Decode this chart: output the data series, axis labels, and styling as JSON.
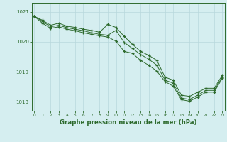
{
  "hours": [
    0,
    1,
    2,
    3,
    4,
    5,
    6,
    7,
    8,
    9,
    10,
    11,
    12,
    13,
    14,
    15,
    16,
    17,
    18,
    19,
    20,
    21,
    22,
    23
  ],
  "line1": [
    1020.85,
    1020.72,
    1020.55,
    1020.62,
    1020.52,
    1020.48,
    1020.42,
    1020.38,
    1020.32,
    1020.58,
    1020.48,
    1020.18,
    1019.92,
    1019.68,
    1019.55,
    1019.38,
    1018.82,
    1018.72,
    1018.22,
    1018.18,
    1018.32,
    1018.45,
    1018.45,
    1018.88
  ],
  "line2": [
    1020.85,
    1020.68,
    1020.5,
    1020.55,
    1020.47,
    1020.42,
    1020.37,
    1020.3,
    1020.25,
    1020.22,
    1020.38,
    1019.98,
    1019.78,
    1019.58,
    1019.42,
    1019.22,
    1018.72,
    1018.62,
    1018.12,
    1018.08,
    1018.22,
    1018.38,
    1018.38,
    1018.82
  ],
  "line3": [
    1020.85,
    1020.62,
    1020.45,
    1020.5,
    1020.42,
    1020.37,
    1020.3,
    1020.25,
    1020.2,
    1020.16,
    1020.02,
    1019.68,
    1019.62,
    1019.38,
    1019.22,
    1019.02,
    1018.67,
    1018.52,
    1018.07,
    1018.02,
    1018.16,
    1018.32,
    1018.32,
    1018.78
  ],
  "line_color": "#2d6a2d",
  "bg_color": "#d5eef0",
  "grid_color": "#b8d8dc",
  "axis_color": "#2d6a2d",
  "xlabel": "Graphe pression niveau de la mer (hPa)",
  "ylim": [
    1017.7,
    1021.3
  ],
  "yticks": [
    1018,
    1019,
    1020,
    1021
  ],
  "xticks": [
    0,
    1,
    2,
    3,
    4,
    5,
    6,
    7,
    8,
    9,
    10,
    11,
    12,
    13,
    14,
    15,
    16,
    17,
    18,
    19,
    20,
    21,
    22,
    23
  ]
}
